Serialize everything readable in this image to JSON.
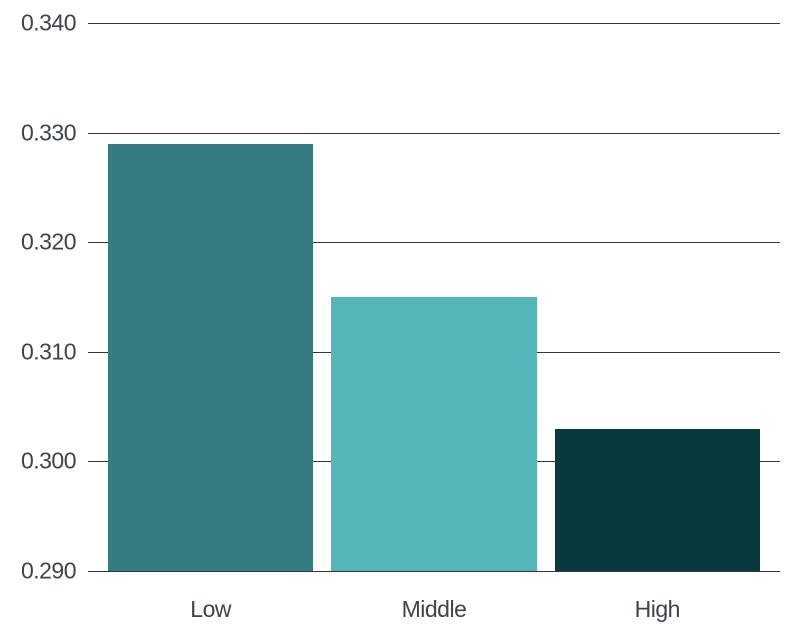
{
  "chart_data": {
    "type": "bar",
    "title": "",
    "xlabel": "",
    "ylabel": "",
    "categories": [
      "Low",
      "Middle",
      "High"
    ],
    "values": [
      0.329,
      0.315,
      0.303
    ],
    "bar_colors": [
      "#347c7f",
      "#54b6b9",
      "#083a3d"
    ],
    "ylim": [
      0.29,
      0.34
    ],
    "yticks": [
      0.29,
      0.3,
      0.31,
      0.32,
      0.33,
      0.34
    ],
    "ytick_labels": [
      "0.290",
      "0.300",
      "0.310",
      "0.320",
      "0.330",
      "0.340"
    ],
    "grid": "horizontal",
    "legend": "none",
    "gridline_color": "#33383c",
    "text_color": "#3d444c",
    "background_color": "#ffffff"
  }
}
